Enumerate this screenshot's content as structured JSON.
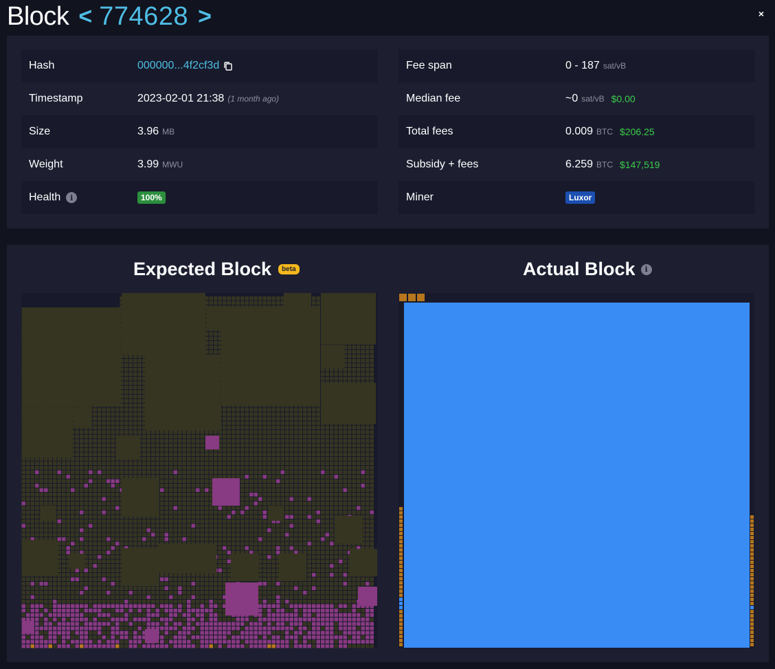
{
  "header": {
    "title": "Block",
    "prev": "<",
    "height": "774628",
    "next": ">",
    "close": "×"
  },
  "details_left": [
    {
      "label": "Hash",
      "value": "000000...4f2cf3d",
      "copy_icon": "copy-icon"
    },
    {
      "label": "Timestamp",
      "value": "2023-02-01 21:38",
      "note": "(1 month ago)"
    },
    {
      "label": "Size",
      "value": "3.96",
      "unit": "MB"
    },
    {
      "label": "Weight",
      "value": "3.99",
      "unit": "MWU"
    },
    {
      "label": "Health",
      "badge": "100%",
      "info_icon": "info-icon"
    }
  ],
  "details_right": [
    {
      "label": "Fee span",
      "value": "0 - 187",
      "unit": "sat/vB"
    },
    {
      "label": "Median fee",
      "value": "~0",
      "unit": "sat/vB",
      "fiat": "$0.00"
    },
    {
      "label": "Total fees",
      "value": "0.009",
      "unit": "BTC",
      "fiat": "$206.25"
    },
    {
      "label": "Subsidy + fees",
      "value": "6.259",
      "unit": "BTC",
      "fiat": "$147,519"
    },
    {
      "label": "Miner",
      "badge": "Luxor"
    }
  ],
  "blocks": {
    "expected_title": "Expected Block",
    "beta": "beta",
    "actual_title": "Actual Block"
  },
  "colors": {
    "background": "#11131f",
    "panel": "#1d1f31",
    "accent": "#4fbde4",
    "fiat": "#3bcc49",
    "tx_olive": "#363521",
    "tx_magenta": "#883a82",
    "tx_orange": "#b5761e",
    "tx_blue": "#3a8cf5"
  }
}
